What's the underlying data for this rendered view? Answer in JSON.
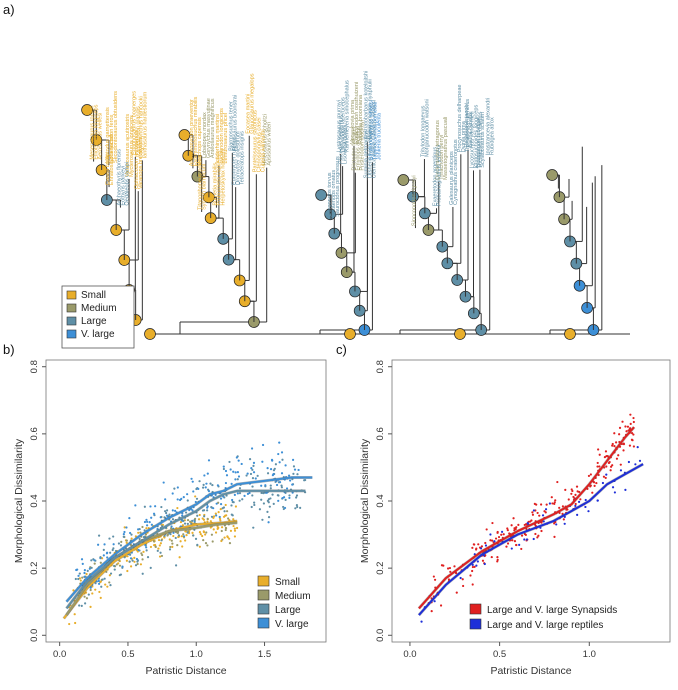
{
  "panels": {
    "a": {
      "label": "a)",
      "close": ")"
    },
    "b": {
      "label": "b)"
    },
    "c": {
      "label": "c)"
    }
  },
  "colors": {
    "small": "#e8ae2b",
    "medium": "#9a9a6a",
    "large": "#5f8fa6",
    "vlarge": "#3d8fd6",
    "synapsid": "#e02020",
    "reptile": "#1e2fd8",
    "branch": "#333333"
  },
  "chart_data": [
    {
      "id": "a",
      "type": "phylogeny",
      "legend": [
        {
          "label": "Small",
          "key": "small"
        },
        {
          "label": "Medium",
          "key": "medium"
        },
        {
          "label": "Large",
          "key": "large"
        },
        {
          "label": "V. large",
          "key": "vlarge"
        }
      ],
      "tip_labels_small": [
        "Cotylorhynchus hancocki",
        "Ianthasaurus hardestiorum",
        "Edaphosaurus boanerges",
        "Dimetrodon grandis",
        "Ophiacodon retroversus",
        "Varanops brevirostris",
        "Varanosaurus acutirostris",
        "Mycterosaurus longiceps",
        "Archaeothyris florensis",
        "Eothyris parkeyi",
        "Oedaleops campi",
        "Casea broilii",
        "Ennatosaurus tecton",
        "Haptodus garnettensis",
        "Sphenacodon ferox",
        "Secodontosaurus obtusidens",
        "Mesenosaurus romeri",
        "Elliotsmithia longiceps",
        "Aerosaurus wellesi",
        "Heleosaurus scholtzi",
        "Apsisaurus witteri",
        "Pantelosaurus saxonicus",
        "Ctenospondylus casei",
        "Cutleria wilmarthi",
        "Eocasea martini",
        "Glaucosaurus megalops",
        "Euromycter rutenus",
        "Oromycter dolesorum",
        "Tetraceratops insignis",
        "Biarmosuchus tener",
        "Hipposaurus boonstrai",
        "Ictidorhinus martinsi",
        "Lycaenodon longiceps",
        "Lemurosaurus pricei",
        "Burnetia mirabilis",
        "Proburnetia viatkensis",
        "Herpetoskylax hopsoni",
        "Lobalopex mordax",
        "Gorynychus masyutinae",
        "Anteosaurus magnificus",
        "Titanophoneus potens",
        "Syodon biarmicum",
        "Archaeosyodon praeventor",
        "Estemmenosuchus mirabilis",
        "Moschops capensis",
        "Struthiocephalus whaitsi",
        "Tapinocaninus pamelae",
        "Jonkeria truculenta",
        "Australobarbarus kotelnitshi",
        "Patranomodon nyaphulii",
        "Galeops whaitsi",
        "Suminia getmanovi",
        "Otsheria netzvetajevi",
        "Ulemica invisa",
        "Venyukovia prima",
        "Eodicynodon oosthuizeni",
        "Robertia broomiana",
        "Diictodon feliceps",
        "Emydops arctatus",
        "Pristerodon mackayi",
        "Lystrosaurus murrayi",
        "Dicynodon lacerticeps",
        "Kannemeyeria simocephalus",
        "Placerias hesternus",
        "Lisowicia bojani",
        "Gorgonops torvus",
        "Lycaenops ornatus",
        "Sauroctonus progressus",
        "Inostrancevia alexandri",
        "Rubidgea atrox",
        "Dinogorgon rubidgei",
        "Scylacosaurus sclateri",
        "Lycosuchus vanderrieti",
        "Ictidosuchoides longiceps",
        "Theriognathus microps",
        "Regisaurus jacobi",
        "Bauria cynops",
        "Procynosuchus delharpeae",
        "Dvinia prima",
        "Thrinaxodon liorhinus",
        "Galesaurus planiceps",
        "Cynognathus crateronotus",
        "Diademodon tetragonus",
        "Trirachodon berryi",
        "Massetognathus pascuali",
        "Exaeretodon argentinus",
        "Probainognathus jenseni",
        "Tritylodon longaevus",
        "Morganucodon watsoni",
        "Sinoconodon rigneyi"
      ]
    },
    {
      "id": "b",
      "type": "scatter",
      "xlabel": "Patristic Distance",
      "ylabel": "Morphological Dissimilarity",
      "xlim": [
        -0.1,
        1.95
      ],
      "ylim": [
        -0.02,
        0.82
      ],
      "xticks": [
        0.0,
        0.5,
        1.0,
        1.5
      ],
      "xtick_labels": [
        "0.0",
        "0.5",
        "1.0",
        "1.5"
      ],
      "yticks": [
        0.0,
        0.2,
        0.4,
        0.6,
        0.8
      ],
      "ytick_labels": [
        "0.0",
        "0.2",
        "0.4",
        "0.6",
        "0.8"
      ],
      "legend_position": "bottom-right",
      "series": [
        {
          "name": "Small",
          "key": "small",
          "x": [
            0.03,
            0.2,
            0.4,
            0.6,
            0.8,
            1.0,
            1.2,
            1.3
          ],
          "y": [
            0.05,
            0.14,
            0.22,
            0.27,
            0.31,
            0.33,
            0.335,
            0.34
          ],
          "cloud": {
            "xmin": 0.05,
            "xmax": 1.3,
            "n": 200,
            "spread": 0.06
          }
        },
        {
          "name": "Medium",
          "key": "medium",
          "x": [
            0.05,
            0.2,
            0.4,
            0.6,
            0.8,
            1.0,
            1.15,
            1.3
          ],
          "y": [
            0.06,
            0.15,
            0.23,
            0.28,
            0.31,
            0.32,
            0.33,
            0.335
          ],
          "cloud": {
            "xmin": 0.1,
            "xmax": 1.25,
            "n": 100,
            "spread": 0.06
          }
        },
        {
          "name": "Large",
          "key": "large",
          "x": [
            0.05,
            0.2,
            0.4,
            0.6,
            0.8,
            1.0,
            1.1,
            1.2,
            1.3,
            1.5,
            1.6,
            1.8
          ],
          "y": [
            0.08,
            0.16,
            0.23,
            0.28,
            0.33,
            0.37,
            0.4,
            0.42,
            0.43,
            0.43,
            0.43,
            0.43
          ],
          "cloud": {
            "xmin": 0.1,
            "xmax": 1.8,
            "n": 260,
            "spread": 0.09
          }
        },
        {
          "name": "V. large",
          "key": "vlarge",
          "x": [
            0.05,
            0.2,
            0.4,
            0.6,
            0.8,
            1.0,
            1.1,
            1.2,
            1.3,
            1.5,
            1.7,
            1.85
          ],
          "y": [
            0.1,
            0.17,
            0.24,
            0.3,
            0.35,
            0.39,
            0.42,
            0.43,
            0.45,
            0.46,
            0.47,
            0.47
          ],
          "cloud": {
            "xmin": 0.1,
            "xmax": 1.75,
            "n": 200,
            "spread": 0.09
          }
        }
      ]
    },
    {
      "id": "c",
      "type": "scatter",
      "xlabel": "Patristic Distance",
      "ylabel": "Morphological Dissimilarity",
      "xlim": [
        -0.1,
        1.45
      ],
      "ylim": [
        -0.02,
        0.82
      ],
      "xticks": [
        0.0,
        0.5,
        1.0
      ],
      "xtick_labels": [
        "0.0",
        "0.5",
        "1.0"
      ],
      "yticks": [
        0.0,
        0.2,
        0.4,
        0.6,
        0.8
      ],
      "ytick_labels": [
        "0.0",
        "0.2",
        "0.4",
        "0.6",
        "0.8"
      ],
      "legend_position": "bottom-right",
      "series": [
        {
          "name": "Large and V. large Synapsids",
          "key": "synapsid",
          "x": [
            0.05,
            0.2,
            0.4,
            0.6,
            0.8,
            0.9,
            1.0,
            1.1,
            1.2,
            1.25
          ],
          "y": [
            0.08,
            0.17,
            0.25,
            0.31,
            0.36,
            0.39,
            0.45,
            0.52,
            0.59,
            0.62
          ],
          "cloud": {
            "xmin": 0.05,
            "xmax": 1.25,
            "n": 260,
            "spread": 0.06
          }
        },
        {
          "name": "Large and V. large reptiles",
          "key": "reptile",
          "x": [
            0.05,
            0.2,
            0.4,
            0.6,
            0.8,
            0.9,
            1.0,
            1.1,
            1.2,
            1.3
          ],
          "y": [
            0.06,
            0.15,
            0.24,
            0.3,
            0.34,
            0.37,
            0.4,
            0.45,
            0.48,
            0.51
          ],
          "cloud": {
            "xmin": 0.05,
            "xmax": 1.3,
            "n": 60,
            "spread": 0.05
          }
        }
      ]
    }
  ]
}
